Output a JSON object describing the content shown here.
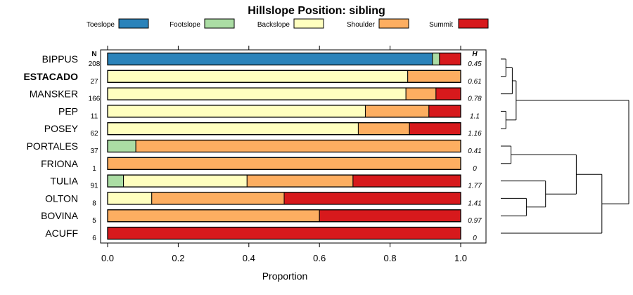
{
  "chart_data": {
    "type": "bar",
    "orientation": "horizontal",
    "stacked": true,
    "title": "Hillslope Position: sibling",
    "xlabel": "Proportion",
    "ylabel": "",
    "xlim": [
      0,
      1
    ],
    "xticks": [
      "0.0",
      "0.2",
      "0.4",
      "0.6",
      "0.8",
      "1.0"
    ],
    "n_header": "N",
    "h_header": "H",
    "legend_position": "top",
    "categories": [
      "BIPPUS",
      "ESTACADO",
      "MANSKER",
      "PEP",
      "POSEY",
      "PORTALES",
      "FRIONA",
      "TULIA",
      "OLTON",
      "BOVINA",
      "ACUFF"
    ],
    "highlight_category": "ESTACADO",
    "n": [
      "208",
      "27",
      "166",
      "11",
      "62",
      "37",
      "1",
      "91",
      "8",
      "5",
      "6"
    ],
    "h": [
      "0.45",
      "0.61",
      "0.78",
      "1.1",
      "1.16",
      "0.41",
      "0",
      "1.77",
      "1.41",
      "0.97",
      "0"
    ],
    "series": [
      {
        "name": "Toeslope",
        "color": "#2b83ba",
        "values": [
          0.92,
          0,
          0,
          0,
          0,
          0,
          0,
          0,
          0,
          0,
          0
        ]
      },
      {
        "name": "Footslope",
        "color": "#abdda4",
        "values": [
          0.02,
          0,
          0,
          0,
          0,
          0.08,
          0,
          0.045,
          0,
          0,
          0
        ]
      },
      {
        "name": "Backslope",
        "color": "#ffffbf",
        "values": [
          0,
          0.85,
          0.845,
          0.73,
          0.71,
          0,
          0,
          0.35,
          0.125,
          0,
          0
        ]
      },
      {
        "name": "Shoulder",
        "color": "#fdae61",
        "values": [
          0,
          0.15,
          0.085,
          0.18,
          0.145,
          0.92,
          1.0,
          0.3,
          0.375,
          0.6,
          0
        ]
      },
      {
        "name": "Summit",
        "color": "#d7191c",
        "values": [
          0.06,
          0,
          0.07,
          0.09,
          0.145,
          0,
          0,
          0.305,
          0.5,
          0.4,
          1.0
        ]
      }
    ],
    "dendrogram": {
      "order": [
        "BIPPUS",
        "ESTACADO",
        "MANSKER",
        "PEP",
        "POSEY",
        "PORTALES",
        "FRIONA",
        "TULIA",
        "OLTON",
        "BOVINA",
        "ACUFF"
      ],
      "merges": [
        {
          "left": "BIPPUS",
          "right": "ESTACADO",
          "height": 0.04
        },
        {
          "left": "PEP",
          "right": "POSEY",
          "height": 0.04
        },
        {
          "left": "BIPPUS+ESTACADO",
          "right": "MANSKER",
          "height": 0.09
        },
        {
          "left": "BIPPUS+ESTACADO+MANSKER",
          "right": "PEP+POSEY",
          "height": 0.12
        },
        {
          "left": "PORTALES",
          "right": "FRIONA",
          "height": 0.08
        },
        {
          "left": "OLTON",
          "right": "BOVINA",
          "height": 0.2
        },
        {
          "left": "TULIA",
          "right": "OLTON+BOVINA",
          "height": 0.35
        },
        {
          "left": "PORTALES+FRIONA",
          "right": "TULIA+OLTON+BOVINA",
          "height": 0.59
        },
        {
          "left": "PORTALES-group",
          "right": "ACUFF",
          "height": 0.79
        },
        {
          "left": "BIPPUS-group",
          "right": "PORTALES-group+ACUFF",
          "height": 1.0
        }
      ]
    }
  }
}
